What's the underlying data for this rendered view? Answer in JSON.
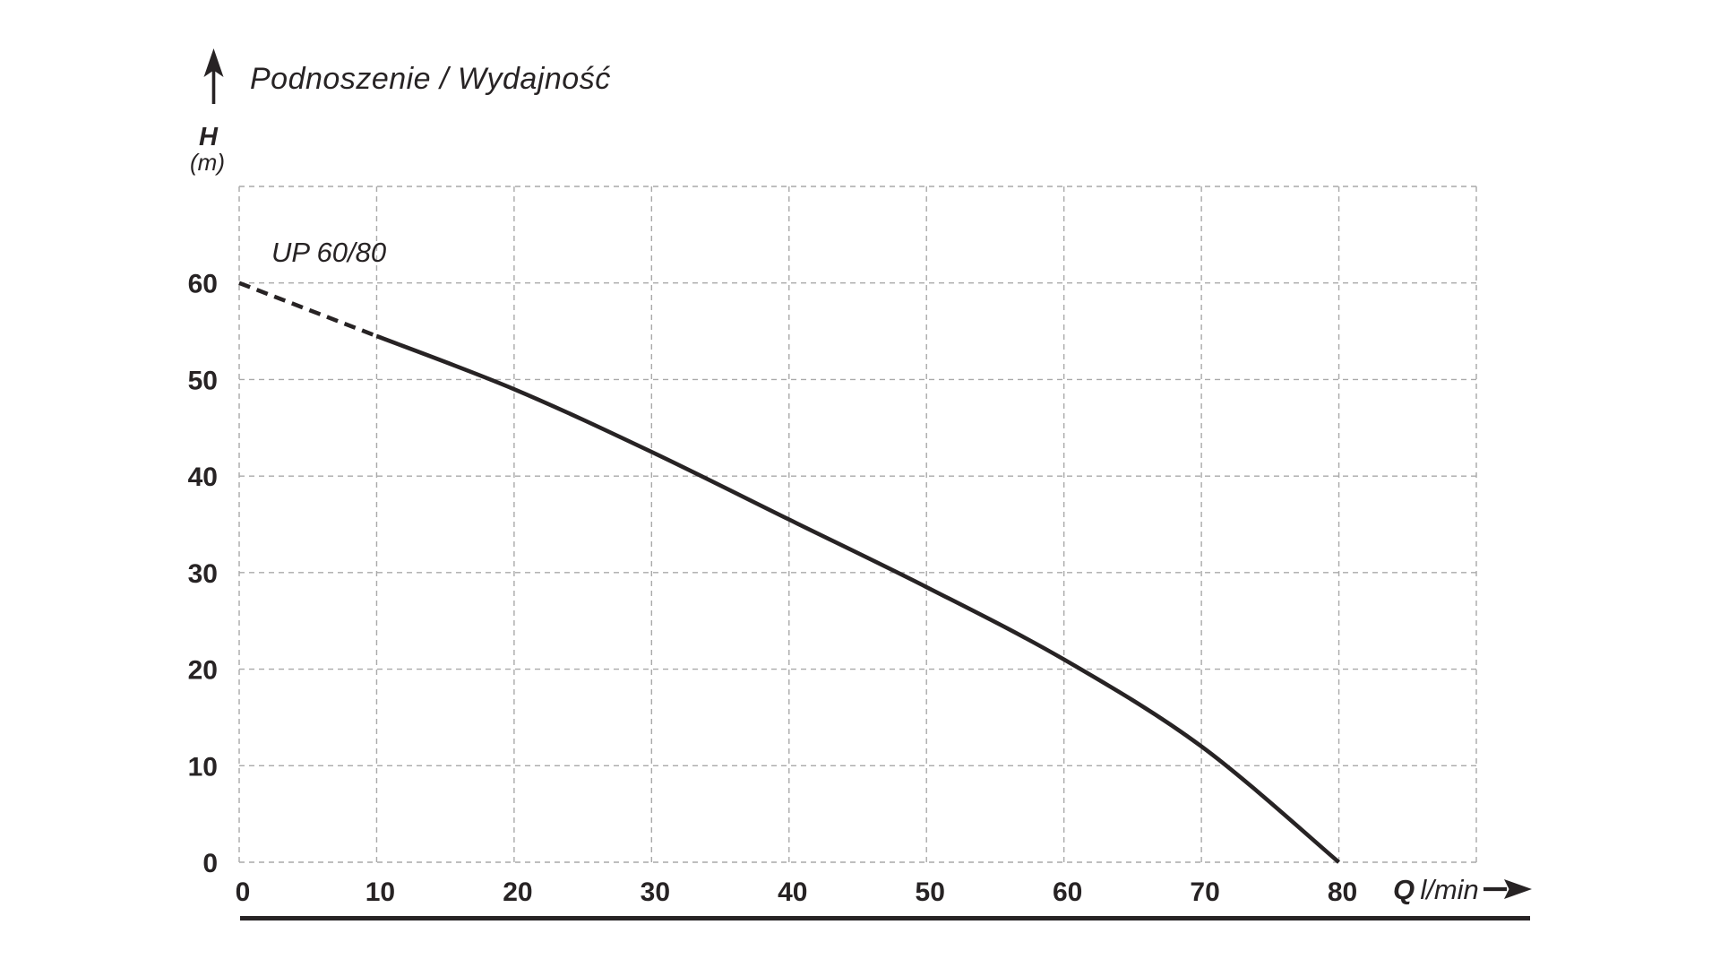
{
  "y_axis": {
    "symbol": "H",
    "unit": "(m)"
  },
  "x_axis": {
    "symbol": "Q",
    "unit": "l/min"
  },
  "colors": {
    "ink": "#272324",
    "grid": "#a9a9a9",
    "bg": "#ffffff"
  },
  "chart_data": {
    "type": "line",
    "title": "Podnoszenie / Wydajność",
    "xlabel": "Q l/min",
    "ylabel": "H (m)",
    "series": [
      {
        "name": "UP 60/80",
        "x": [
          0,
          10,
          20,
          30,
          40,
          50,
          60,
          70,
          80
        ],
        "y": [
          60,
          54.5,
          49,
          42.5,
          35.5,
          28.5,
          21,
          12,
          0
        ],
        "dashed_until_x": 10,
        "color": "#272324"
      }
    ],
    "x_ticks": [
      0,
      10,
      20,
      30,
      40,
      50,
      60,
      70,
      80
    ],
    "y_ticks": [
      0,
      10,
      20,
      30,
      40,
      50,
      60
    ],
    "xlim": [
      0,
      90
    ],
    "ylim": [
      0,
      70
    ],
    "grid": "dashed",
    "legend": "none"
  }
}
